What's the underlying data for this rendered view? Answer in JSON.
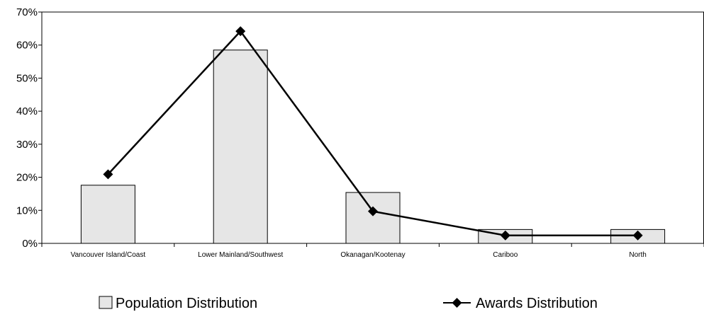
{
  "chart_data": {
    "type": "bar",
    "categories": [
      "Vancouver Island/Coast",
      "Lower Mainland/Southwest",
      "Okanagan/Kootenay",
      "Cariboo",
      "North"
    ],
    "series": [
      {
        "name": "Population Distribution",
        "type": "bar",
        "color": "#e6e6e6",
        "values": [
          17.6,
          58.5,
          15.4,
          4.2,
          4.2
        ]
      },
      {
        "name": "Awards Distribution",
        "type": "line",
        "color": "#000000",
        "marker": "diamond",
        "values": [
          20.9,
          64.2,
          9.7,
          2.4,
          2.4
        ]
      }
    ],
    "ylim": [
      0,
      70
    ],
    "yticks": [
      "0%",
      "10%",
      "20%",
      "30%",
      "40%",
      "50%",
      "60%",
      "70%"
    ],
    "ytick_values": [
      0,
      10,
      20,
      30,
      40,
      50,
      60,
      70
    ],
    "y_unit": "%",
    "title": "",
    "xlabel": "",
    "ylabel": "",
    "grid": false,
    "legend_position": "bottom"
  }
}
